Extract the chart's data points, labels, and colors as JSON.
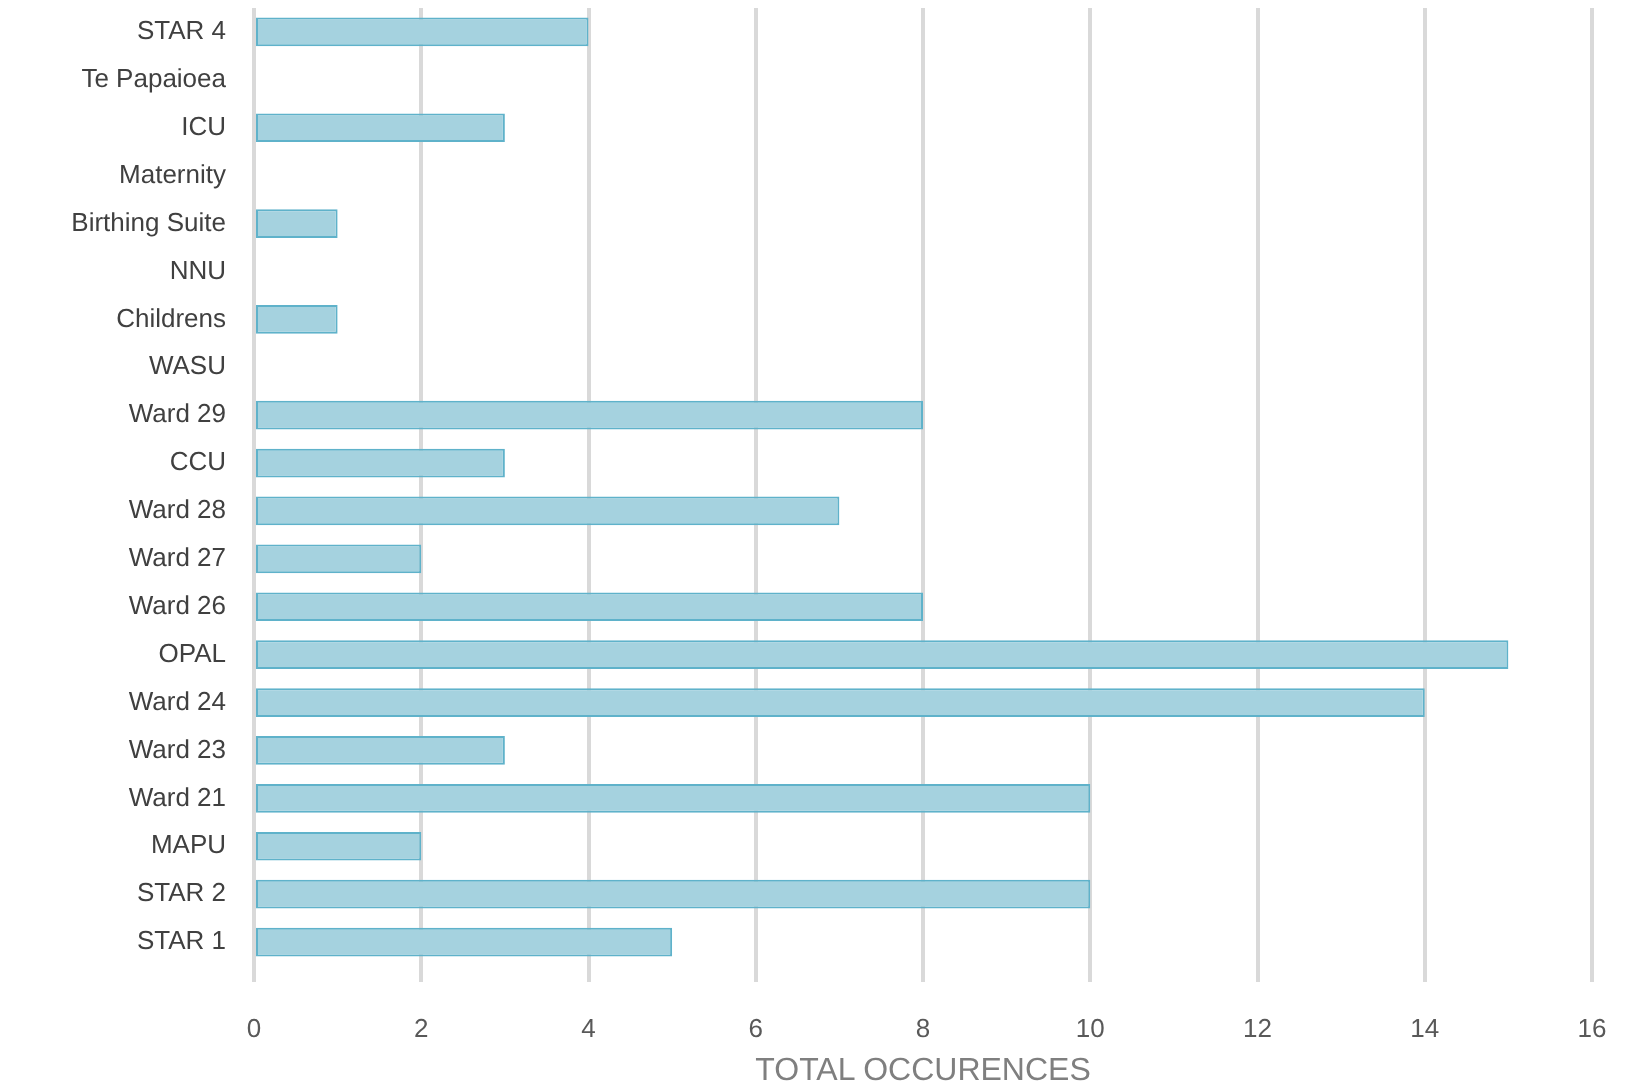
{
  "chart_data": {
    "type": "bar",
    "orientation": "horizontal",
    "xlabel": "TOTAL OCCURENCES",
    "categories": [
      "STAR 4",
      "Te Papaioea",
      "ICU",
      "Maternity",
      "Birthing Suite",
      "NNU",
      "Childrens",
      "WASU",
      "Ward 29",
      "CCU",
      "Ward 28",
      "Ward 27",
      "Ward 26",
      "OPAL",
      "Ward 24",
      "Ward 23",
      "Ward 21",
      "MAPU",
      "STAR 2",
      "STAR 1"
    ],
    "values": [
      4,
      0,
      3,
      0,
      1,
      0,
      1,
      0,
      8,
      3,
      7,
      2,
      8,
      15,
      14,
      3,
      10,
      2,
      10,
      5
    ],
    "color": "#a5d2df",
    "xlim": [
      0,
      16
    ],
    "xticks": [
      0,
      2,
      4,
      6,
      8,
      10,
      12,
      14,
      16
    ],
    "grid": "x",
    "legend": false
  }
}
